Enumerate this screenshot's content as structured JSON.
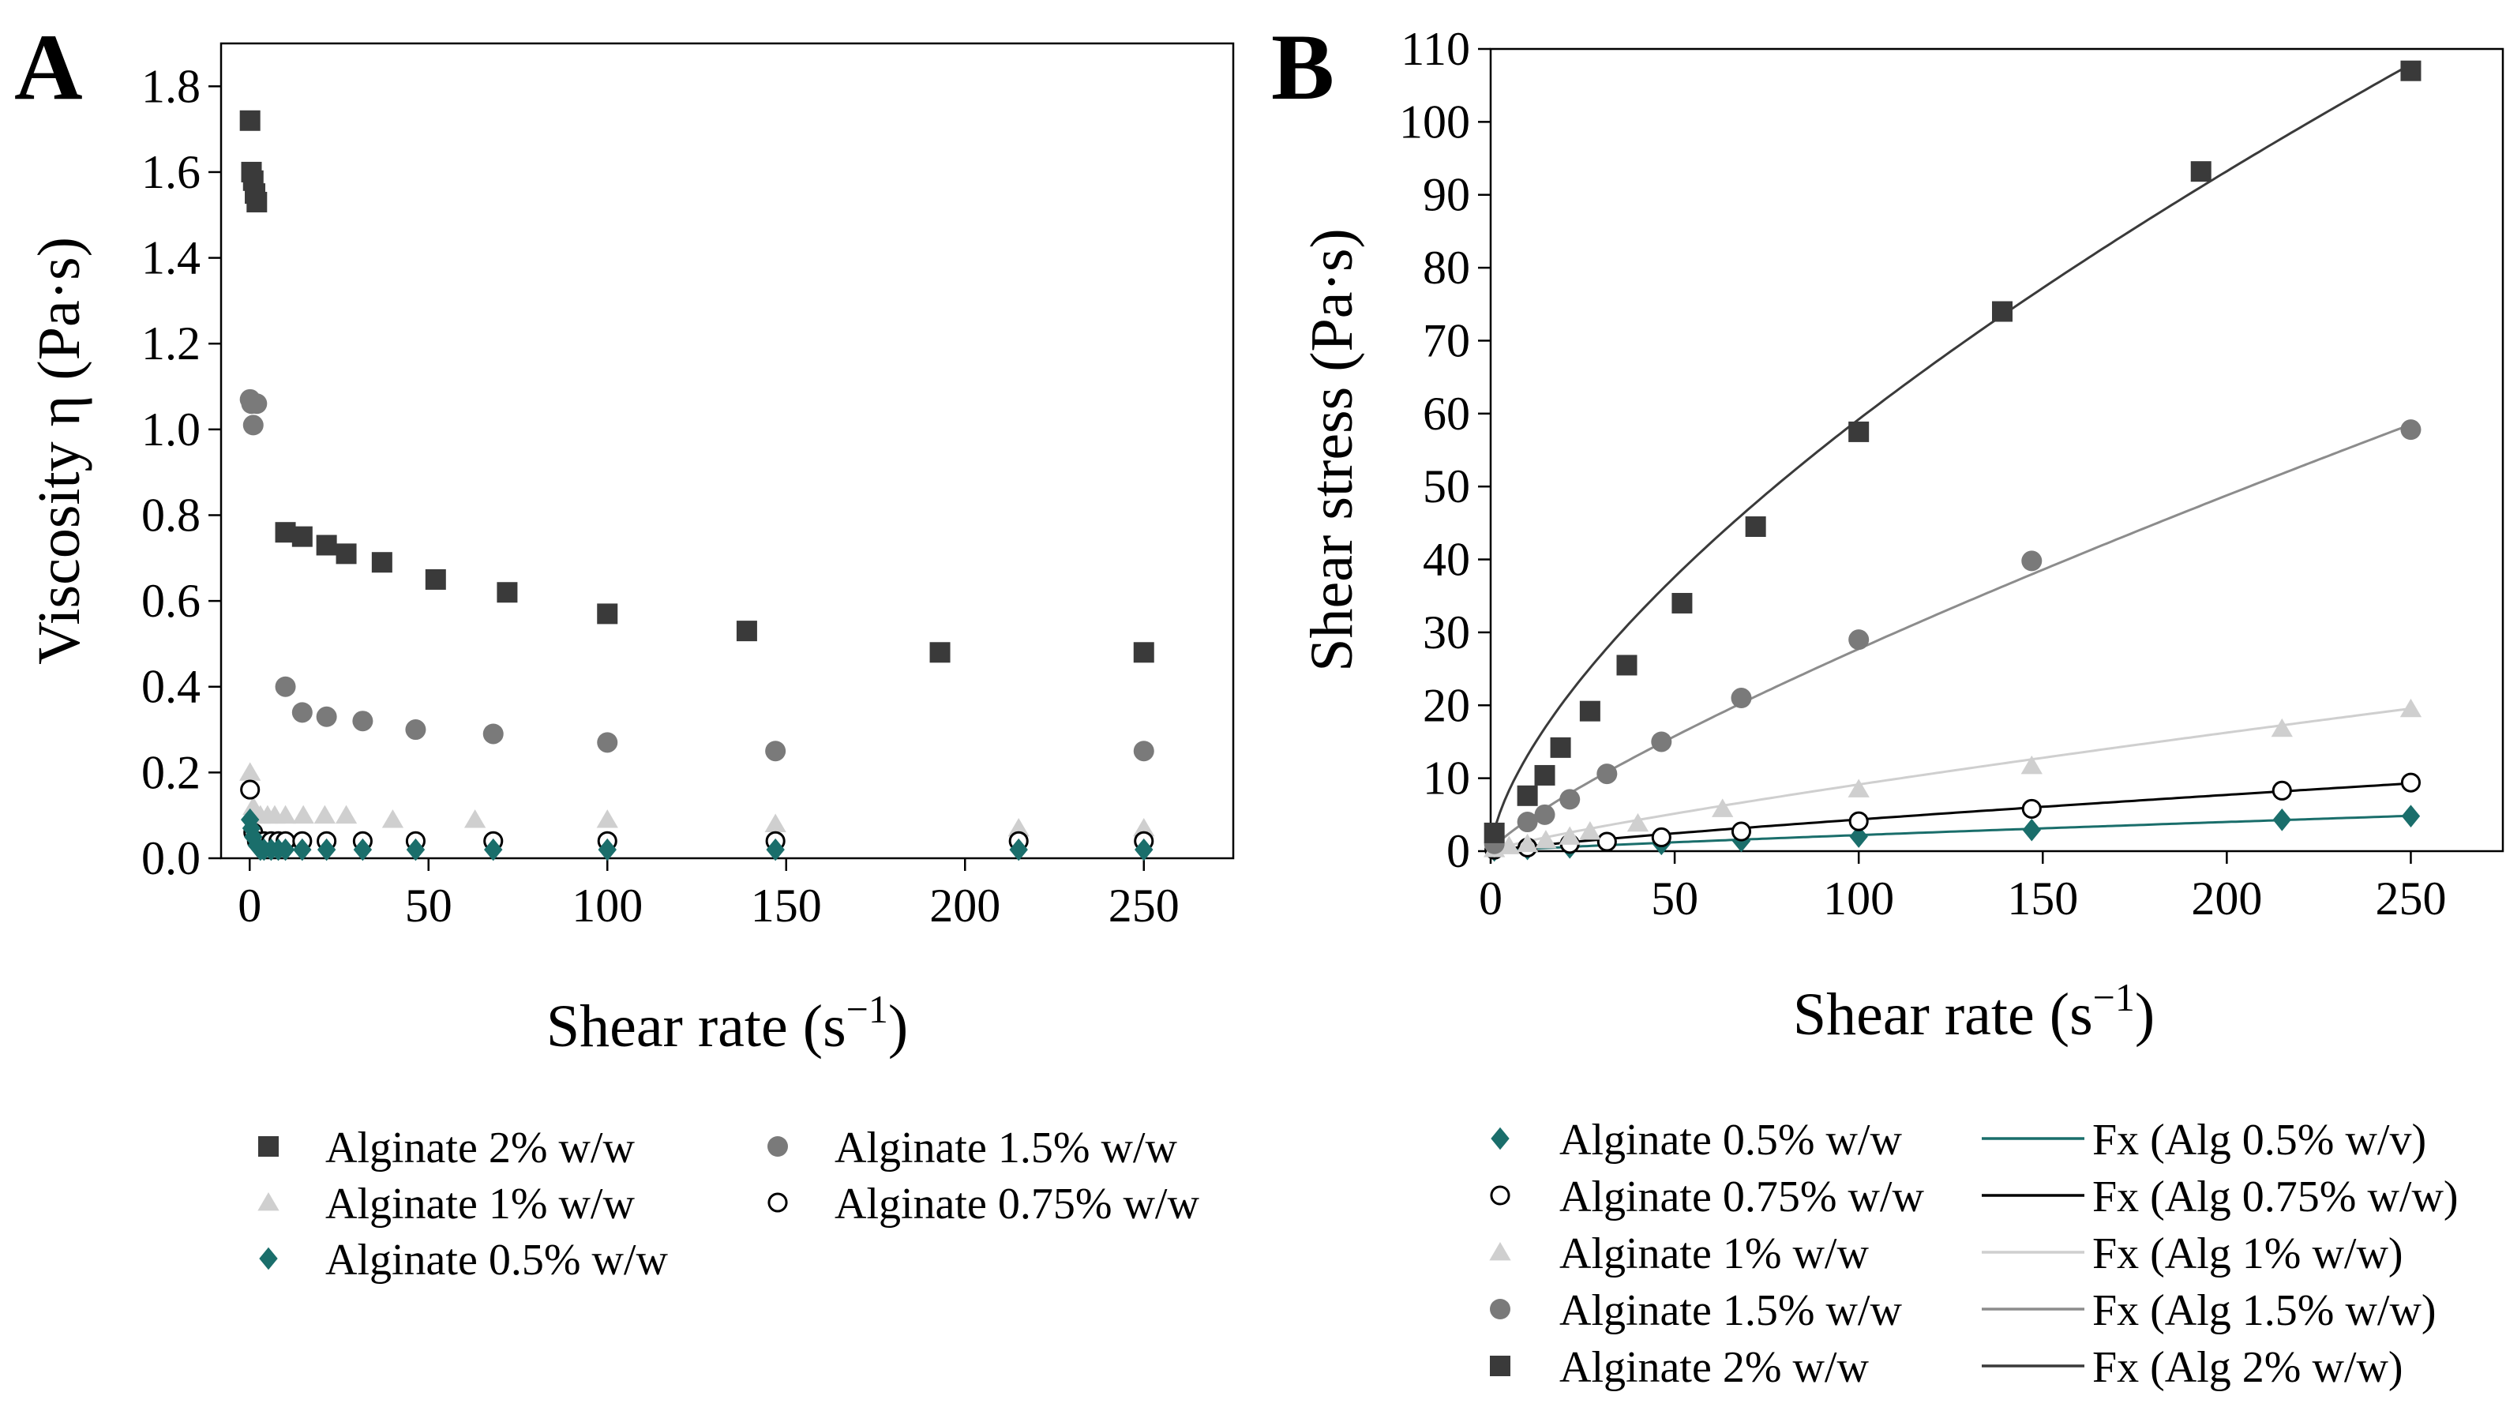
{
  "chart_data": [
    {
      "panel": "A",
      "type": "scatter",
      "title": "",
      "xlabel": "Shear rate (s",
      "xlabel_sup": "−1",
      "xlabel_end": ")",
      "ylabel": "Viscosity η (Pa·s)",
      "xlim": [
        -8,
        275
      ],
      "ylim": [
        0,
        1.9
      ],
      "xticks": [
        0,
        50,
        100,
        150,
        200,
        250
      ],
      "xtick_labels": [
        "0",
        "50",
        "100",
        "150",
        "200",
        "250"
      ],
      "yticks": [
        0,
        0.2,
        0.4,
        0.6,
        0.8,
        1.0,
        1.2,
        1.4,
        1.6,
        1.8
      ],
      "ytick_labels": [
        "0.0",
        "0.2",
        "0.4",
        "0.6",
        "0.8",
        "1.0",
        "1.2",
        "1.4",
        "1.6",
        "1.8"
      ],
      "grid": false,
      "legend_position": "bottom",
      "series": [
        {
          "name": "Alginate 2% w/w",
          "marker": "square",
          "color": "#3a3a3a",
          "x": [
            0.1,
            0.5,
            1,
            1.5,
            2,
            10,
            14.7,
            21.5,
            27,
            37,
            52,
            72,
            100,
            139,
            193,
            250
          ],
          "y": [
            1.72,
            1.6,
            1.58,
            1.55,
            1.53,
            0.76,
            0.75,
            0.73,
            0.71,
            0.69,
            0.65,
            0.62,
            0.57,
            0.53,
            0.48,
            0.48
          ]
        },
        {
          "name": "Alginate 1.5% w/w",
          "marker": "circle",
          "color": "#7a7a7a",
          "x": [
            0.1,
            0.5,
            1,
            2,
            10,
            14.7,
            21.5,
            31.6,
            46.4,
            68.1,
            100,
            147,
            250
          ],
          "y": [
            1.07,
            1.06,
            1.01,
            1.06,
            0.4,
            0.34,
            0.33,
            0.32,
            0.3,
            0.29,
            0.27,
            0.25,
            0.25
          ]
        },
        {
          "name": "Alginate 1% w/w",
          "marker": "triangle",
          "color": "#cfcfcf",
          "x": [
            0.1,
            1,
            3,
            5,
            7,
            10,
            15,
            21,
            27,
            40,
            63,
            100,
            147,
            215,
            250
          ],
          "y": [
            0.2,
            0.12,
            0.1,
            0.1,
            0.1,
            0.1,
            0.1,
            0.1,
            0.1,
            0.09,
            0.09,
            0.09,
            0.08,
            0.07,
            0.07
          ]
        },
        {
          "name": "Alginate 0.75% w/w",
          "marker": "open-circle",
          "color": "#000000",
          "x": [
            0.1,
            1,
            2,
            4,
            6,
            8,
            10,
            14.7,
            21.5,
            31.6,
            46.4,
            68.1,
            100,
            147,
            215,
            250
          ],
          "y": [
            0.16,
            0.06,
            0.04,
            0.04,
            0.04,
            0.04,
            0.04,
            0.04,
            0.04,
            0.04,
            0.04,
            0.04,
            0.04,
            0.04,
            0.04,
            0.04
          ]
        },
        {
          "name": "Alginate 0.5% w/w",
          "marker": "diamond",
          "color": "#1a6e6b",
          "x": [
            0.1,
            0.5,
            1,
            2,
            3,
            4,
            6,
            8,
            10,
            14.7,
            21.5,
            31.6,
            46.4,
            68.1,
            100,
            147,
            215,
            250
          ],
          "y": [
            0.09,
            0.07,
            0.05,
            0.03,
            0.02,
            0.02,
            0.02,
            0.02,
            0.02,
            0.02,
            0.02,
            0.02,
            0.02,
            0.02,
            0.02,
            0.02,
            0.02,
            0.02
          ]
        }
      ],
      "legend": [
        [
          "Alginate 2% w/w",
          "Alginate 1.5% w/w"
        ],
        [
          "Alginate 1% w/w",
          "Alginate 0.75% w/w"
        ],
        [
          "Alginate 0.5% w/w"
        ]
      ]
    },
    {
      "panel": "B",
      "type": "scatter",
      "title": "",
      "xlabel": "Shear rate (s",
      "xlabel_sup": "−1",
      "xlabel_end": ")",
      "ylabel": "Shear stress (Pa·s)",
      "xlim": [
        0,
        275
      ],
      "ylim": [
        0,
        110
      ],
      "xticks": [
        0,
        50,
        100,
        150,
        200,
        250
      ],
      "xtick_labels": [
        "0",
        "50",
        "100",
        "150",
        "200",
        "250"
      ],
      "yticks": [
        0,
        10,
        20,
        30,
        40,
        50,
        60,
        70,
        80,
        90,
        100,
        110
      ],
      "ytick_labels": [
        "0",
        "10",
        "20",
        "30",
        "40",
        "50",
        "60",
        "70",
        "80",
        "90",
        "100",
        "110"
      ],
      "grid": false,
      "legend_position": "bottom",
      "series": [
        {
          "name": "Alginate 0.5% w/w",
          "marker": "diamond",
          "color": "#1a6e6b",
          "x": [
            1,
            10,
            21.5,
            46.4,
            68.1,
            100,
            147,
            215,
            250
          ],
          "y": [
            0.1,
            0.3,
            0.5,
            1.0,
            1.4,
            2.0,
            2.9,
            4.3,
            4.8
          ]
        },
        {
          "name": "Alginate 0.75% w/w",
          "marker": "open-circle",
          "color": "#000000",
          "x": [
            1,
            10,
            21.5,
            31.6,
            46.4,
            68.1,
            100,
            147,
            215,
            250
          ],
          "y": [
            0.2,
            0.5,
            1.0,
            1.3,
            1.9,
            2.7,
            4.1,
            5.8,
            8.3,
            9.4
          ]
        },
        {
          "name": "Alginate 1% w/w",
          "marker": "triangle",
          "color": "#cfcfcf",
          "x": [
            1,
            5,
            10,
            15,
            21.5,
            27,
            40,
            63,
            100,
            147,
            215,
            250
          ],
          "y": [
            0.3,
            0.7,
            1.0,
            1.5,
            2.0,
            2.7,
            3.8,
            5.8,
            8.5,
            11.7,
            16.8,
            19.5
          ]
        },
        {
          "name": "Alginate 1.5% w/w",
          "marker": "circle",
          "color": "#7a7a7a",
          "x": [
            1,
            10,
            14.7,
            21.5,
            31.6,
            46.4,
            68.1,
            100,
            147,
            250
          ],
          "y": [
            1.0,
            4.0,
            5.0,
            7.1,
            10.6,
            15.0,
            21.0,
            29.0,
            39.8,
            57.8
          ]
        },
        {
          "name": "Alginate 2% w/w",
          "marker": "square",
          "color": "#3a3a3a",
          "x": [
            1,
            10,
            14.7,
            19,
            27,
            37,
            52,
            72,
            100,
            139,
            193,
            250
          ],
          "y": [
            2.5,
            7.6,
            10.4,
            14.2,
            19.2,
            25.5,
            34.0,
            44.5,
            57.5,
            74.0,
            93.2,
            107.0
          ]
        }
      ],
      "fits": [
        {
          "name": "Fx (Alg 0.5% w/v)",
          "color": "#1a6e6b",
          "k": 0.042,
          "n": 0.86
        },
        {
          "name": "Fx (Alg 0.75% w/w)",
          "color": "#000000",
          "k": 0.095,
          "n": 0.83
        },
        {
          "name": "Fx (Alg 1% w/w)",
          "color": "#cfcfcf",
          "k": 0.2,
          "n": 0.83
        },
        {
          "name": "Fx (Alg 1.5% w/w)",
          "color": "#8c8c8c",
          "k": 0.65,
          "n": 0.815
        },
        {
          "name": "Fx (Alg 2% w/w)",
          "color": "#3a3a3a",
          "k": 2.9,
          "n": 0.655
        }
      ],
      "legend": [
        [
          "Alginate 0.5% w/w",
          "Fx (Alg 0.5% w/v)"
        ],
        [
          "Alginate 0.75% w/w",
          "Fx (Alg 0.75% w/w)"
        ],
        [
          "Alginate 1% w/w",
          "Fx (Alg 1% w/w)"
        ],
        [
          "Alginate 1.5% w/w",
          "Fx (Alg 1.5% w/w)"
        ],
        [
          "Alginate 2% w/w",
          "Fx (Alg 2% w/w)"
        ]
      ]
    }
  ],
  "panels": {
    "a": "A",
    "b": "B"
  }
}
